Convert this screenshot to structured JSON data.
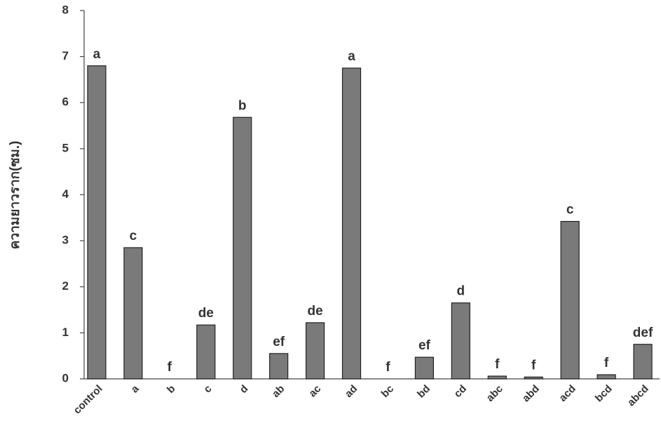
{
  "chart_data": {
    "type": "bar",
    "y_label": "ความยาวราก(ซม.)",
    "categories": [
      "control",
      "a",
      "b",
      "c",
      "d",
      "ab",
      "ac",
      "ad",
      "bc",
      "bd",
      "cd",
      "abc",
      "abd",
      "acd",
      "bcd",
      "abcd"
    ],
    "values": [
      6.8,
      2.85,
      0,
      1.17,
      5.68,
      0.55,
      1.22,
      6.75,
      0,
      0.47,
      1.65,
      0.06,
      0.04,
      3.42,
      0.09,
      0.75
    ],
    "annotations": [
      "a",
      "c",
      "f",
      "de",
      "b",
      "ef",
      "de",
      "a",
      "f",
      "ef",
      "d",
      "f",
      "f",
      "c",
      "f",
      "def"
    ],
    "color": "#7a7a7a",
    "ylim": [
      0,
      8
    ],
    "yticks": [
      0,
      1,
      2,
      3,
      4,
      5,
      6,
      7,
      8
    ]
  }
}
